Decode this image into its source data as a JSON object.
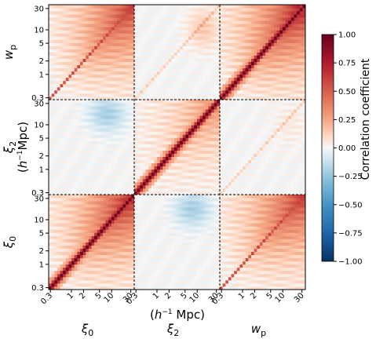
{
  "chart_data": {
    "type": "heatmap",
    "title": "",
    "blocks": [
      {
        "name": "ξ0",
        "label_base": "ξ",
        "label_sub": "0"
      },
      {
        "name": "ξ2",
        "label_base": "ξ",
        "label_sub": "2"
      },
      {
        "name": "wp",
        "label_base": "w",
        "label_sub": "p"
      }
    ],
    "shared_xlabel": {
      "prefix": "(",
      "h": "h",
      "exp": "−1",
      "unit": " Mpc)"
    },
    "xi2_ylabel_units": {
      "prefix": "(",
      "h": "h",
      "exp": "−1",
      "unit": "Mpc)"
    },
    "bins_per_block": 30,
    "bin_range": [
      0.3,
      30
    ],
    "scale": "log",
    "y_tick_labels": [
      "0.3",
      "1",
      "2",
      "5",
      "10",
      "30"
    ],
    "x_tick_labels": [
      "0.3",
      "1",
      "2",
      "5",
      "10",
      "30"
    ],
    "colorbar": {
      "label": "Correlation coefficient",
      "range": [
        -1.0,
        1.0
      ],
      "ticks": [
        "1.00",
        "0.75",
        "0.50",
        "0.25",
        "0.00",
        "−0.25",
        "−0.50",
        "−0.75",
        "−1.00"
      ],
      "colormap": "RdBu_r"
    },
    "divider_style": "dashed",
    "diagonal_value": 1.0,
    "block_correlations": [
      {
        "row": "wp",
        "col": "ξ0",
        "peak": 0.65
      },
      {
        "row": "wp",
        "col": "ξ2",
        "peak": 0.15
      },
      {
        "row": "wp",
        "col": "wp",
        "peak": 0.8
      },
      {
        "row": "ξ2",
        "col": "ξ0",
        "peak": -0.2
      },
      {
        "row": "ξ2",
        "col": "ξ2",
        "peak": 0.35
      },
      {
        "row": "ξ2",
        "col": "wp",
        "peak": 0.05
      },
      {
        "row": "ξ0",
        "col": "ξ0",
        "peak": 0.75
      },
      {
        "row": "ξ0",
        "col": "ξ2",
        "peak": -0.2
      },
      {
        "row": "ξ0",
        "col": "wp",
        "peak": 0.65
      }
    ]
  }
}
